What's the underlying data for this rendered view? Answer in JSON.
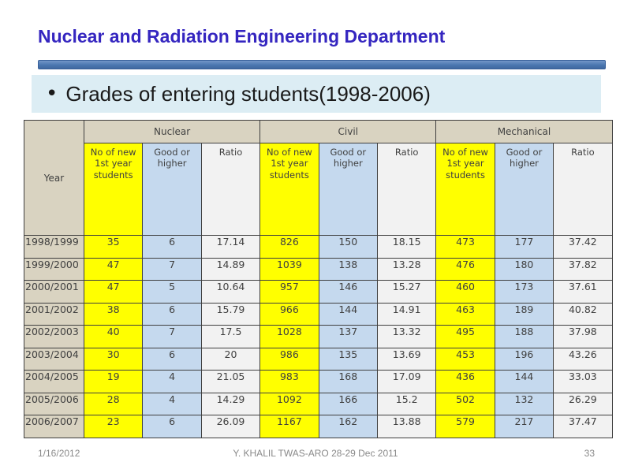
{
  "slide": {
    "title": "Nuclear and Radiation Engineering Department",
    "bullet_marker": "•",
    "bullet_text": "Grades of entering students(1998-2006)"
  },
  "table": {
    "year_header": "Year",
    "groups": [
      {
        "label": "Nuclear"
      },
      {
        "label": "Civil"
      },
      {
        "label": "Mechanical"
      }
    ],
    "sub_headers": [
      "No of new 1st year students",
      "Good or higher",
      "Ratio"
    ],
    "rows": [
      {
        "year": "1998/1999",
        "values": [
          "35",
          "6",
          "17.14",
          "826",
          "150",
          "18.15",
          "473",
          "177",
          "37.42"
        ]
      },
      {
        "year": "1999/2000",
        "values": [
          "47",
          "7",
          "14.89",
          "1039",
          "138",
          "13.28",
          "476",
          "180",
          "37.82"
        ]
      },
      {
        "year": "2000/2001",
        "values": [
          "47",
          "5",
          "10.64",
          "957",
          "146",
          "15.27",
          "460",
          "173",
          "37.61"
        ]
      },
      {
        "year": "2001/2002",
        "values": [
          "38",
          "6",
          "15.79",
          "966",
          "144",
          "14.91",
          "463",
          "189",
          "40.82"
        ]
      },
      {
        "year": "2002/2003",
        "values": [
          "40",
          "7",
          "17.5",
          "1028",
          "137",
          "13.32",
          "495",
          "188",
          "37.98"
        ]
      },
      {
        "year": "2003/2004",
        "values": [
          "30",
          "6",
          "20",
          "986",
          "135",
          "13.69",
          "453",
          "196",
          "43.26"
        ]
      },
      {
        "year": "2004/2005",
        "values": [
          "19",
          "4",
          "21.05",
          "983",
          "168",
          "17.09",
          "436",
          "144",
          "33.03"
        ]
      },
      {
        "year": "2005/2006",
        "values": [
          "28",
          "4",
          "14.29",
          "1092",
          "166",
          "15.2",
          "502",
          "132",
          "26.29"
        ]
      },
      {
        "year": "2006/2007",
        "values": [
          "23",
          "6",
          "26.09",
          "1167",
          "162",
          "13.88",
          "579",
          "217",
          "37.47"
        ]
      }
    ]
  },
  "chart_data": {
    "type": "table",
    "title": "Grades of entering students(1998-2006)",
    "categories": [
      "1998/1999",
      "1999/2000",
      "2000/2001",
      "2001/2002",
      "2002/2003",
      "2003/2004",
      "2004/2005",
      "2005/2006",
      "2006/2007"
    ],
    "series": [
      {
        "name": "Nuclear - No of new 1st year students",
        "values": [
          35,
          47,
          47,
          38,
          40,
          30,
          19,
          28,
          23
        ]
      },
      {
        "name": "Nuclear - Good or higher",
        "values": [
          6,
          7,
          5,
          6,
          7,
          6,
          4,
          4,
          6
        ]
      },
      {
        "name": "Nuclear - Ratio",
        "values": [
          17.14,
          14.89,
          10.64,
          15.79,
          17.5,
          20,
          21.05,
          14.29,
          26.09
        ]
      },
      {
        "name": "Civil - No of new 1st year students",
        "values": [
          826,
          1039,
          957,
          966,
          1028,
          986,
          983,
          1092,
          1167
        ]
      },
      {
        "name": "Civil - Good or higher",
        "values": [
          150,
          138,
          146,
          144,
          137,
          135,
          168,
          166,
          162
        ]
      },
      {
        "name": "Civil - Ratio",
        "values": [
          18.15,
          13.28,
          15.27,
          14.91,
          13.32,
          13.69,
          17.09,
          15.2,
          13.88
        ]
      },
      {
        "name": "Mechanical - No of new 1st year students",
        "values": [
          473,
          476,
          460,
          463,
          495,
          453,
          436,
          502,
          579
        ]
      },
      {
        "name": "Mechanical - Good or higher",
        "values": [
          177,
          180,
          173,
          189,
          188,
          196,
          144,
          132,
          217
        ]
      },
      {
        "name": "Mechanical - Ratio",
        "values": [
          37.42,
          37.82,
          37.61,
          40.82,
          37.98,
          43.26,
          33.03,
          26.29,
          37.47
        ]
      }
    ]
  },
  "footer": {
    "date": "1/16/2012",
    "center": "Y. KHALIL TWAS-ARO 28-29 Dec 2011",
    "page": "33"
  },
  "colors": {
    "title": "#3526c0",
    "title_bar": "#4a77b0",
    "banner_bg": "#dcedf4",
    "header_tan": "#d9d3c1",
    "cell_yellow": "#ffff00",
    "cell_blue": "#c5d9ee",
    "cell_gray": "#f2f2f2",
    "footer_text": "#8a8a8a"
  }
}
